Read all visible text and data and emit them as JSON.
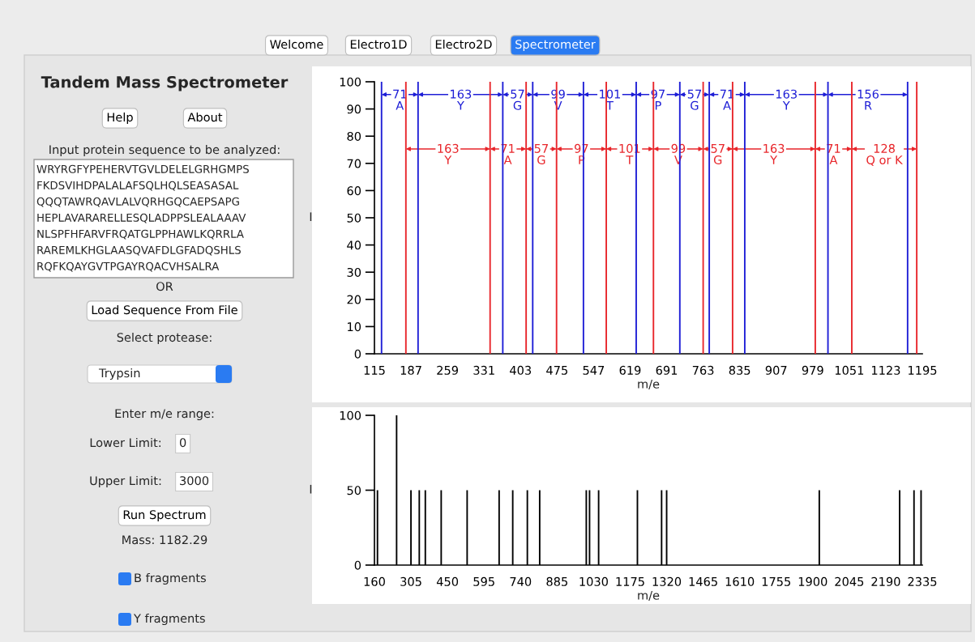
{
  "chart_data": [
    {
      "type": "other",
      "title": "Tandem Mass Spectrometer",
      "annotations": [
        "Welcome",
        "Electro1D",
        "Electro2D",
        "Spectrometer",
        "Help",
        "About",
        "Input protein sequence to be analyzed:",
        "WRYRGFYPEHERVTGVLDELELGRHGMPS",
        "FKDSVIHDPALALAFSQLHQLSEASASAL",
        "QQQTAWRQAVLALVQRHGQCAEPSAPG",
        "HEPLAVARARELLESQLADPPSLEALAAAV",
        "NLSPFHFARVFRQATGLPPHAWLKQRRLA",
        "RAREMLKHGLAASQVAFDLGFADQSHLS",
        "RQFKQAYGVTPGAYRQACVHSALRA",
        "OR",
        "Load Sequence From File",
        "Select protease:",
        "Trypsin",
        "Enter m/e range:",
        "Lower Limit:",
        "0",
        "Upper Limit:",
        "3000",
        "Run Spectrum",
        "Mass: 1182.29",
        "B fragments",
        "Y fragments"
      ]
    },
    {
      "type": "bar",
      "xlabel": "m/e",
      "ylabel": "I",
      "xlim": [
        115,
        1195
      ],
      "xticks": [
        115,
        187,
        259,
        331,
        403,
        475,
        547,
        619,
        691,
        763,
        835,
        907,
        979,
        1051,
        1123,
        1195
      ],
      "ylim": [
        0,
        100
      ],
      "yticks": [
        0,
        10,
        20,
        30,
        40,
        50,
        60,
        70,
        80,
        90,
        100
      ],
      "series": [
        {
          "color": "#1f1fd6",
          "x": [
            129,
            201,
            368,
            427,
            527,
            631,
            717,
            775,
            845,
            1009,
            1166
          ],
          "values": [
            100,
            100,
            100,
            100,
            100,
            100,
            100,
            100,
            100,
            100,
            100
          ]
        },
        {
          "color": "#e8262b",
          "x": [
            177,
            343,
            414,
            474,
            572,
            665,
            763,
            821,
            984,
            1056,
            1184
          ],
          "values": [
            100,
            100,
            100,
            100,
            100,
            100,
            100,
            100,
            100,
            100,
            100
          ]
        }
      ],
      "annotations": [
        {
          "text": "71\nA",
          "x": 165,
          "y": 93
        },
        {
          "text": "163\nY",
          "x": 285,
          "y": 93
        },
        {
          "text": "57\nG",
          "x": 397,
          "y": 93
        },
        {
          "text": "99\nV",
          "x": 477,
          "y": 93
        },
        {
          "text": "101\nT",
          "x": 579,
          "y": 93
        },
        {
          "text": "97\nP",
          "x": 674,
          "y": 93
        },
        {
          "text": "57\nG",
          "x": 746,
          "y": 93
        },
        {
          "text": "71\nA",
          "x": 810,
          "y": 93
        },
        {
          "text": "163\nY",
          "x": 927,
          "y": 93
        },
        {
          "text": "156\nR",
          "x": 1088,
          "y": 93
        },
        {
          "text": "163\nY",
          "x": 260,
          "y": 73
        },
        {
          "text": "71\nA",
          "x": 378,
          "y": 73
        },
        {
          "text": "57\nG",
          "x": 444,
          "y": 73
        },
        {
          "text": "97\nP",
          "x": 523,
          "y": 73
        },
        {
          "text": "101\nT",
          "x": 618,
          "y": 73
        },
        {
          "text": "99\nV",
          "x": 714,
          "y": 73
        },
        {
          "text": "57\nG",
          "x": 792,
          "y": 73
        },
        {
          "text": "163\nY",
          "x": 902,
          "y": 73
        },
        {
          "text": "71\nA",
          "x": 1020,
          "y": 73
        },
        "128\nQ or K"
      ]
    },
    {
      "type": "bar",
      "xlabel": "m/e",
      "ylabel": "I",
      "xlim": [
        160,
        2335
      ],
      "xticks": [
        160,
        305,
        450,
        595,
        740,
        885,
        1030,
        1175,
        1320,
        1465,
        1610,
        1755,
        1900,
        2045,
        2190,
        2335
      ],
      "ylim": [
        0,
        100
      ],
      "yticks": [
        0,
        50,
        100
      ],
      "color": "#000000",
      "x": [
        172,
        248,
        305,
        338,
        362,
        425,
        528,
        655,
        709,
        767,
        816,
        1001,
        1014,
        1050,
        1204,
        1300,
        1320,
        1926,
        2245,
        2302,
        2330
      ],
      "values": [
        50,
        100,
        50,
        50,
        50,
        50,
        50,
        50,
        50,
        50,
        50,
        50,
        50,
        50,
        50,
        50,
        50,
        50,
        50,
        50,
        50
      ]
    }
  ]
}
